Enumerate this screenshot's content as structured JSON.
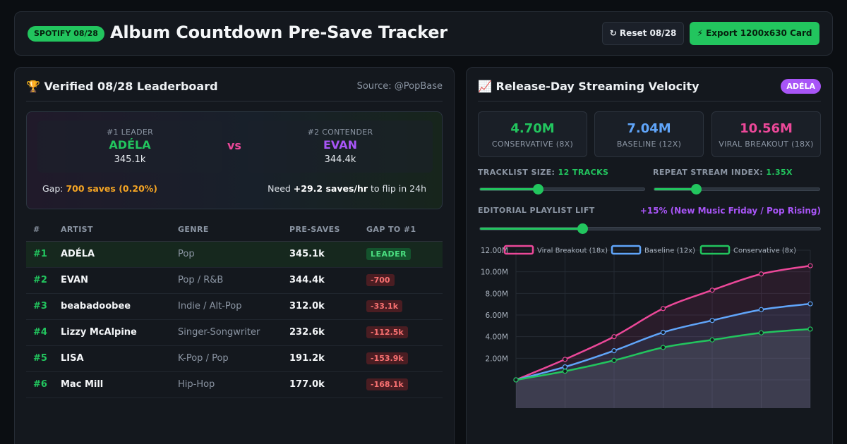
{
  "header": {
    "badge": "SPOTIFY 08/28",
    "title": "Album Countdown Pre-Save Tracker",
    "reset_label": "↻ Reset 08/28",
    "export_label": "⚡ Export 1200x630 Card"
  },
  "leaderboard": {
    "title": "🏆 Verified 08/28 Leaderboard",
    "source": "Source: @PopBase",
    "leader": {
      "rank_label": "#1 LEADER",
      "name": "ADÉLA",
      "value": "345.1k"
    },
    "vs_label": "vs",
    "contender": {
      "rank_label": "#2 CONTENDER",
      "name": "EVAN",
      "value": "344.4k"
    },
    "gap_prefix": "Gap: ",
    "gap_value": "700 saves (0.20%)",
    "need_prefix": "Need ",
    "need_value": "+29.2 saves/hr",
    "need_suffix": " to flip in 24h",
    "columns": [
      "#",
      "ARTIST",
      "GENRE",
      "PRE-SAVES",
      "GAP TO #1"
    ],
    "rows": [
      {
        "rank": "#1",
        "artist": "ADÉLA",
        "genre": "Pop",
        "presaves": "345.1k",
        "gap": "LEADER"
      },
      {
        "rank": "#2",
        "artist": "EVAN",
        "genre": "Pop / R&B",
        "presaves": "344.4k",
        "gap": "-700"
      },
      {
        "rank": "#3",
        "artist": "beabadoobee",
        "genre": "Indie / Alt-Pop",
        "presaves": "312.0k",
        "gap": "-33.1k"
      },
      {
        "rank": "#4",
        "artist": "Lizzy McAlpine",
        "genre": "Singer-Songwriter",
        "presaves": "232.6k",
        "gap": "-112.5k"
      },
      {
        "rank": "#5",
        "artist": "LISA",
        "genre": "K-Pop / Pop",
        "presaves": "191.2k",
        "gap": "-153.9k"
      },
      {
        "rank": "#6",
        "artist": "Mac Mill",
        "genre": "Hip-Hop",
        "presaves": "177.0k",
        "gap": "-168.1k"
      }
    ]
  },
  "velocity": {
    "title": "📈 Release-Day Streaming Velocity",
    "artist_pill": "ADÉLA",
    "stats": [
      {
        "value": "4.70M",
        "label": "CONSERVATIVE (8X)",
        "color": "#22c55e"
      },
      {
        "value": "7.04M",
        "label": "BASELINE (12X)",
        "color": "#60a5fa"
      },
      {
        "value": "10.56M",
        "label": "VIRAL BREAKOUT (18X)",
        "color": "#ec4899"
      }
    ],
    "tracklist_label": "TRACKLIST SIZE: ",
    "tracklist_value": "12 TRACKS",
    "tracklist_level": 0.35,
    "repeat_label": "REPEAT STREAM INDEX: ",
    "repeat_value": "1.35X",
    "repeat_level": 0.25,
    "editorial_label": "EDITORIAL PLAYLIST LIFT",
    "editorial_value": "+15% (New Music Friday / Pop Rising)",
    "editorial_level": 0.3
  },
  "chart_data": {
    "type": "line",
    "series": [
      {
        "name": "Viral Breakout (18x)",
        "color": "#ec4899",
        "values": [
          0.0,
          1.9,
          4.0,
          6.6,
          8.3,
          9.8,
          10.56
        ]
      },
      {
        "name": "Baseline (12x)",
        "color": "#60a5fa",
        "values": [
          0.0,
          1.2,
          2.7,
          4.4,
          5.5,
          6.5,
          7.04
        ]
      },
      {
        "name": "Conservative (8x)",
        "color": "#22c55e",
        "values": [
          0.0,
          0.8,
          1.8,
          3.0,
          3.7,
          4.35,
          4.7
        ]
      }
    ],
    "y_ticks": [
      "12.00M",
      "10.00M",
      "8.00M",
      "6.00M",
      "4.00M",
      "2.00M"
    ],
    "ylim": [
      0,
      12
    ],
    "grid": true,
    "legend": "top"
  }
}
